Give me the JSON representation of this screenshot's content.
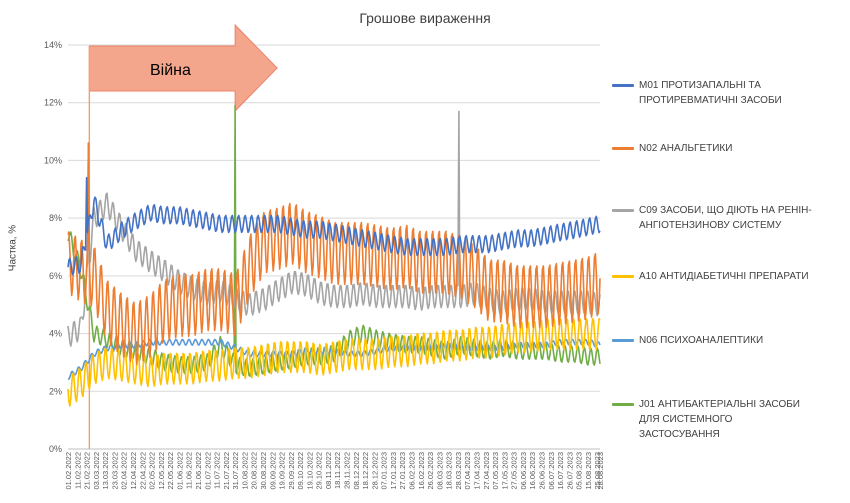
{
  "chart_data": {
    "type": "line",
    "title": "Грошове вираження",
    "xlabel": "",
    "ylabel": "Частка, %",
    "ylim": [
      0,
      14
    ],
    "yticks": [
      "0%",
      "2%",
      "4%",
      "6%",
      "8%",
      "10%",
      "12%",
      "14%"
    ],
    "grid": "horizontal",
    "legend_position": "right",
    "annotation": {
      "label": "Війна",
      "shape": "right arrow",
      "start_date": "24.02.2022",
      "end_date": "31.07.2022",
      "fill": "#f4a68c",
      "marker_line_date": "24.02.2022"
    },
    "x_tick_labels": [
      "01.02.2022",
      "11.02.2022",
      "21.02.2022",
      "03.03.2022",
      "13.03.2022",
      "23.03.2022",
      "02.04.2022",
      "12.04.2022",
      "22.04.2022",
      "02.05.2022",
      "12.05.2022",
      "22.05.2022",
      "01.06.2022",
      "11.06.2022",
      "21.06.2022",
      "01.07.2022",
      "11.07.2022",
      "21.07.2022",
      "31.07.2022",
      "10.08.2022",
      "20.08.2022",
      "30.08.2022",
      "09.09.2022",
      "19.09.2022",
      "29.09.2022",
      "09.10.2022",
      "19.10.2022",
      "29.10.2022",
      "08.11.2022",
      "18.11.2022",
      "28.11.2022",
      "08.12.2022",
      "18.12.2022",
      "28.12.2022",
      "07.01.2023",
      "17.01.2023",
      "27.01.2023",
      "06.02.2023",
      "16.02.2023",
      "26.02.2023",
      "08.03.2023",
      "18.03.2023",
      "28.03.2023",
      "07.04.2023",
      "17.04.2023",
      "27.04.2023",
      "07.05.2023",
      "17.05.2023",
      "27.05.2023",
      "06.06.2023",
      "16.06.2023",
      "26.06.2023",
      "06.07.2023",
      "16.07.2023",
      "26.07.2023",
      "05.08.2023",
      "15.08.2023",
      "25.08.2023",
      "28.08.2023"
    ],
    "x_dates": [
      "01.02.2022",
      "15.02.2022",
      "01.03.2022",
      "15.03.2022",
      "01.04.2022",
      "15.04.2022",
      "01.05.2022",
      "15.05.2022",
      "01.06.2022",
      "15.06.2022",
      "01.07.2022",
      "15.07.2022",
      "01.08.2022",
      "15.08.2022",
      "01.09.2022",
      "15.09.2022",
      "01.10.2022",
      "15.10.2022",
      "01.11.2022",
      "15.11.2022",
      "01.12.2022",
      "15.12.2022",
      "01.01.2023",
      "15.01.2023",
      "01.02.2023",
      "15.02.2023",
      "01.03.2023",
      "15.03.2023",
      "01.04.2023",
      "15.04.2023",
      "01.05.2023",
      "15.05.2023",
      "01.06.2023",
      "15.06.2023",
      "01.07.2023",
      "15.07.2023",
      "01.08.2023",
      "15.08.2023",
      "28.08.2023"
    ],
    "series": [
      {
        "name": "M01 Протизапальні та протиревматичні засоби",
        "color": "#4472c4",
        "amp": 0.3,
        "values": [
          6.3,
          6.4,
          8.6,
          7.1,
          7.6,
          7.9,
          8.2,
          8.1,
          8.1,
          8.0,
          7.9,
          7.8,
          7.8,
          7.8,
          7.8,
          7.8,
          7.7,
          7.6,
          7.6,
          7.5,
          7.4,
          7.3,
          7.2,
          7.1,
          7.0,
          7.0,
          7.0,
          7.0,
          7.1,
          7.1,
          7.1,
          7.2,
          7.3,
          7.3,
          7.4,
          7.5,
          7.6,
          7.7,
          7.8
        ]
      },
      {
        "name": "N02 Анальгетики",
        "color": "#ed7d31",
        "amp": 1.1,
        "values": [
          6.5,
          6.2,
          6.0,
          4.8,
          4.3,
          4.0,
          4.3,
          4.8,
          5.0,
          5.0,
          5.2,
          5.2,
          5.0,
          6.3,
          7.2,
          7.3,
          7.5,
          7.2,
          7.0,
          6.8,
          6.8,
          6.8,
          6.7,
          6.6,
          6.7,
          6.5,
          6.5,
          6.5,
          6.3,
          6.0,
          5.5,
          5.5,
          5.3,
          5.3,
          5.3,
          5.4,
          5.5,
          5.6,
          5.8
        ]
      },
      {
        "name": "C09 Засоби, що діють на ренін-ангіотензинову систему",
        "color": "#a5a5a5",
        "amp": 0.4,
        "values": [
          3.9,
          4.2,
          8.0,
          8.5,
          7.6,
          6.9,
          6.5,
          6.2,
          5.8,
          5.6,
          5.4,
          5.5,
          5.2,
          5.0,
          5.2,
          5.5,
          5.8,
          5.7,
          5.4,
          5.3,
          5.3,
          5.4,
          5.3,
          5.3,
          5.3,
          5.2,
          5.3,
          5.3,
          5.3,
          5.4,
          5.2,
          5.1,
          5.2,
          5.2,
          5.1,
          5.1,
          5.1,
          5.1,
          5.0
        ]
      },
      {
        "name": "A10 Антидіабетичні препарати",
        "color": "#ffc000",
        "amp": 0.55,
        "values": [
          2.0,
          2.3,
          2.8,
          3.0,
          2.9,
          2.8,
          2.7,
          2.8,
          2.8,
          2.8,
          2.9,
          2.9,
          3.0,
          3.0,
          3.1,
          3.2,
          3.2,
          3.2,
          3.1,
          3.2,
          3.3,
          3.3,
          3.3,
          3.4,
          3.4,
          3.5,
          3.5,
          3.6,
          3.6,
          3.7,
          3.7,
          3.8,
          3.9,
          3.9,
          4.0,
          4.0,
          4.0,
          4.0,
          4.0
        ]
      },
      {
        "name": "N06 Психоаналептики",
        "color": "#5b9bd5",
        "amp": 0.1,
        "values": [
          2.5,
          2.8,
          3.3,
          3.5,
          3.6,
          3.6,
          3.7,
          3.7,
          3.7,
          3.7,
          3.7,
          3.7,
          3.5,
          3.3,
          3.3,
          3.3,
          3.3,
          3.4,
          3.4,
          3.4,
          3.3,
          3.3,
          3.4,
          3.5,
          3.5,
          3.5,
          3.5,
          3.6,
          3.5,
          3.5,
          3.5,
          3.5,
          3.6,
          3.6,
          3.6,
          3.7,
          3.7,
          3.7,
          3.6
        ]
      },
      {
        "name": "J01 Антибактеріальні засоби для системного застосування",
        "color": "#70ad47",
        "amp": 0.3,
        "values": [
          7.5,
          6.2,
          4.0,
          3.8,
          3.5,
          3.4,
          3.2,
          3.0,
          2.9,
          2.9,
          3.0,
          3.6,
          2.9,
          2.8,
          2.9,
          3.0,
          3.1,
          3.2,
          3.2,
          3.3,
          3.8,
          4.0,
          3.8,
          3.7,
          3.6,
          3.6,
          3.5,
          3.4,
          3.6,
          3.5,
          3.4,
          3.5,
          3.4,
          3.4,
          3.4,
          3.3,
          3.3,
          3.2,
          3.2
        ]
      }
    ]
  }
}
